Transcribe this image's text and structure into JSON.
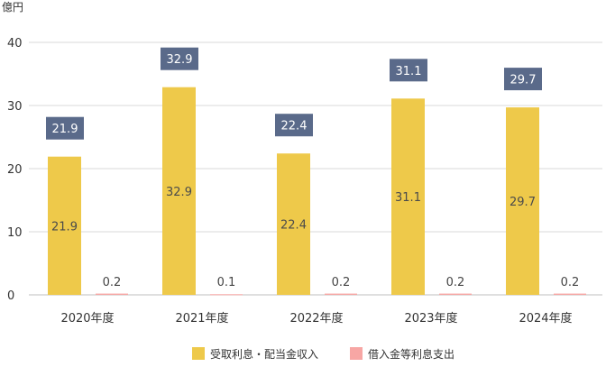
{
  "chart_data": {
    "type": "bar",
    "unit_label": "億円",
    "categories": [
      "2020年度",
      "2021年度",
      "2022年度",
      "2023年度",
      "2024年度"
    ],
    "series": [
      {
        "name": "受取利息・配当金収入",
        "values": [
          21.9,
          32.9,
          22.4,
          31.1,
          29.7
        ],
        "color": "#eec94a"
      },
      {
        "name": "借入金等利息支出",
        "values": [
          0.2,
          0.1,
          0.2,
          0.2,
          0.2
        ],
        "color": "#f7a6a4"
      }
    ],
    "totals": [
      21.9,
      32.9,
      22.4,
      31.1,
      29.7
    ],
    "total_box_color": "#5a6a8a",
    "ylim": [
      0,
      40
    ],
    "yticks": [
      0,
      10,
      20,
      30,
      40
    ],
    "grid": true,
    "legend_position": "bottom"
  }
}
